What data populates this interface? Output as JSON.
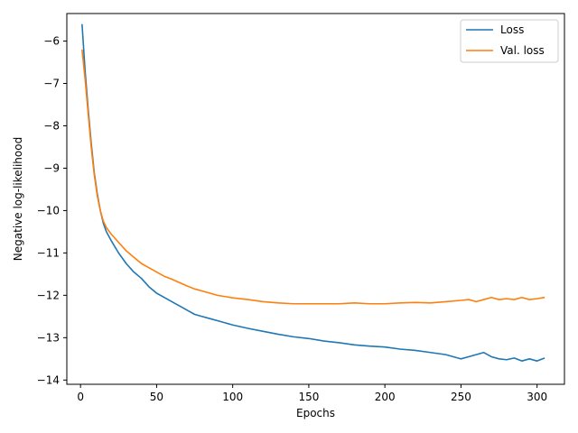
{
  "chart_data": {
    "type": "line",
    "title": "",
    "xlabel": "Epochs",
    "ylabel": "Negative log-likelihood",
    "xlim": [
      -9,
      318
    ],
    "ylim": [
      -14.1,
      -5.35
    ],
    "xticks": [
      0,
      50,
      100,
      150,
      200,
      250,
      300
    ],
    "xtick_labels": [
      "0",
      "50",
      "100",
      "150",
      "200",
      "250",
      "300"
    ],
    "yticks": [
      -6,
      -7,
      -8,
      -9,
      -10,
      -11,
      -12,
      -13,
      -14
    ],
    "ytick_labels": [
      "−6",
      "−7",
      "−8",
      "−9",
      "−10",
      "−11",
      "−12",
      "−13",
      "−14"
    ],
    "grid": false,
    "legend_position": "upper-right",
    "series": [
      {
        "name": "Loss",
        "color": "#1f77b4",
        "x": [
          1,
          3,
          5,
          7,
          9,
          11,
          13,
          15,
          17,
          20,
          25,
          30,
          35,
          40,
          45,
          50,
          55,
          60,
          65,
          70,
          75,
          80,
          85,
          90,
          95,
          100,
          110,
          120,
          130,
          140,
          150,
          160,
          170,
          180,
          190,
          200,
          210,
          220,
          230,
          240,
          250,
          255,
          260,
          265,
          270,
          275,
          280,
          285,
          290,
          295,
          300,
          305
        ],
        "y": [
          -5.6,
          -6.7,
          -7.6,
          -8.4,
          -9.1,
          -9.6,
          -10.0,
          -10.3,
          -10.5,
          -10.7,
          -11.0,
          -11.25,
          -11.45,
          -11.6,
          -11.8,
          -11.95,
          -12.05,
          -12.15,
          -12.25,
          -12.35,
          -12.45,
          -12.5,
          -12.55,
          -12.6,
          -12.65,
          -12.7,
          -12.78,
          -12.85,
          -12.92,
          -12.98,
          -13.02,
          -13.08,
          -13.12,
          -13.17,
          -13.2,
          -13.22,
          -13.27,
          -13.3,
          -13.35,
          -13.4,
          -13.5,
          -13.45,
          -13.4,
          -13.35,
          -13.45,
          -13.5,
          -13.52,
          -13.48,
          -13.55,
          -13.5,
          -13.55,
          -13.48
        ]
      },
      {
        "name": "Val. loss",
        "color": "#ff7f0e",
        "x": [
          1,
          3,
          5,
          7,
          9,
          11,
          13,
          15,
          17,
          20,
          25,
          30,
          35,
          40,
          45,
          50,
          55,
          60,
          65,
          70,
          75,
          80,
          85,
          90,
          95,
          100,
          110,
          120,
          130,
          140,
          150,
          160,
          170,
          180,
          190,
          200,
          210,
          220,
          230,
          240,
          250,
          255,
          260,
          265,
          270,
          275,
          280,
          285,
          290,
          295,
          300,
          305
        ],
        "y": [
          -6.2,
          -6.9,
          -7.7,
          -8.5,
          -9.15,
          -9.65,
          -10.0,
          -10.25,
          -10.4,
          -10.55,
          -10.75,
          -10.95,
          -11.1,
          -11.25,
          -11.35,
          -11.45,
          -11.55,
          -11.62,
          -11.7,
          -11.78,
          -11.85,
          -11.9,
          -11.95,
          -12.0,
          -12.03,
          -12.06,
          -12.1,
          -12.15,
          -12.18,
          -12.2,
          -12.2,
          -12.2,
          -12.2,
          -12.18,
          -12.2,
          -12.2,
          -12.18,
          -12.17,
          -12.18,
          -12.15,
          -12.12,
          -12.1,
          -12.15,
          -12.1,
          -12.05,
          -12.1,
          -12.08,
          -12.1,
          -12.05,
          -12.1,
          -12.08,
          -12.05
        ]
      }
    ]
  }
}
